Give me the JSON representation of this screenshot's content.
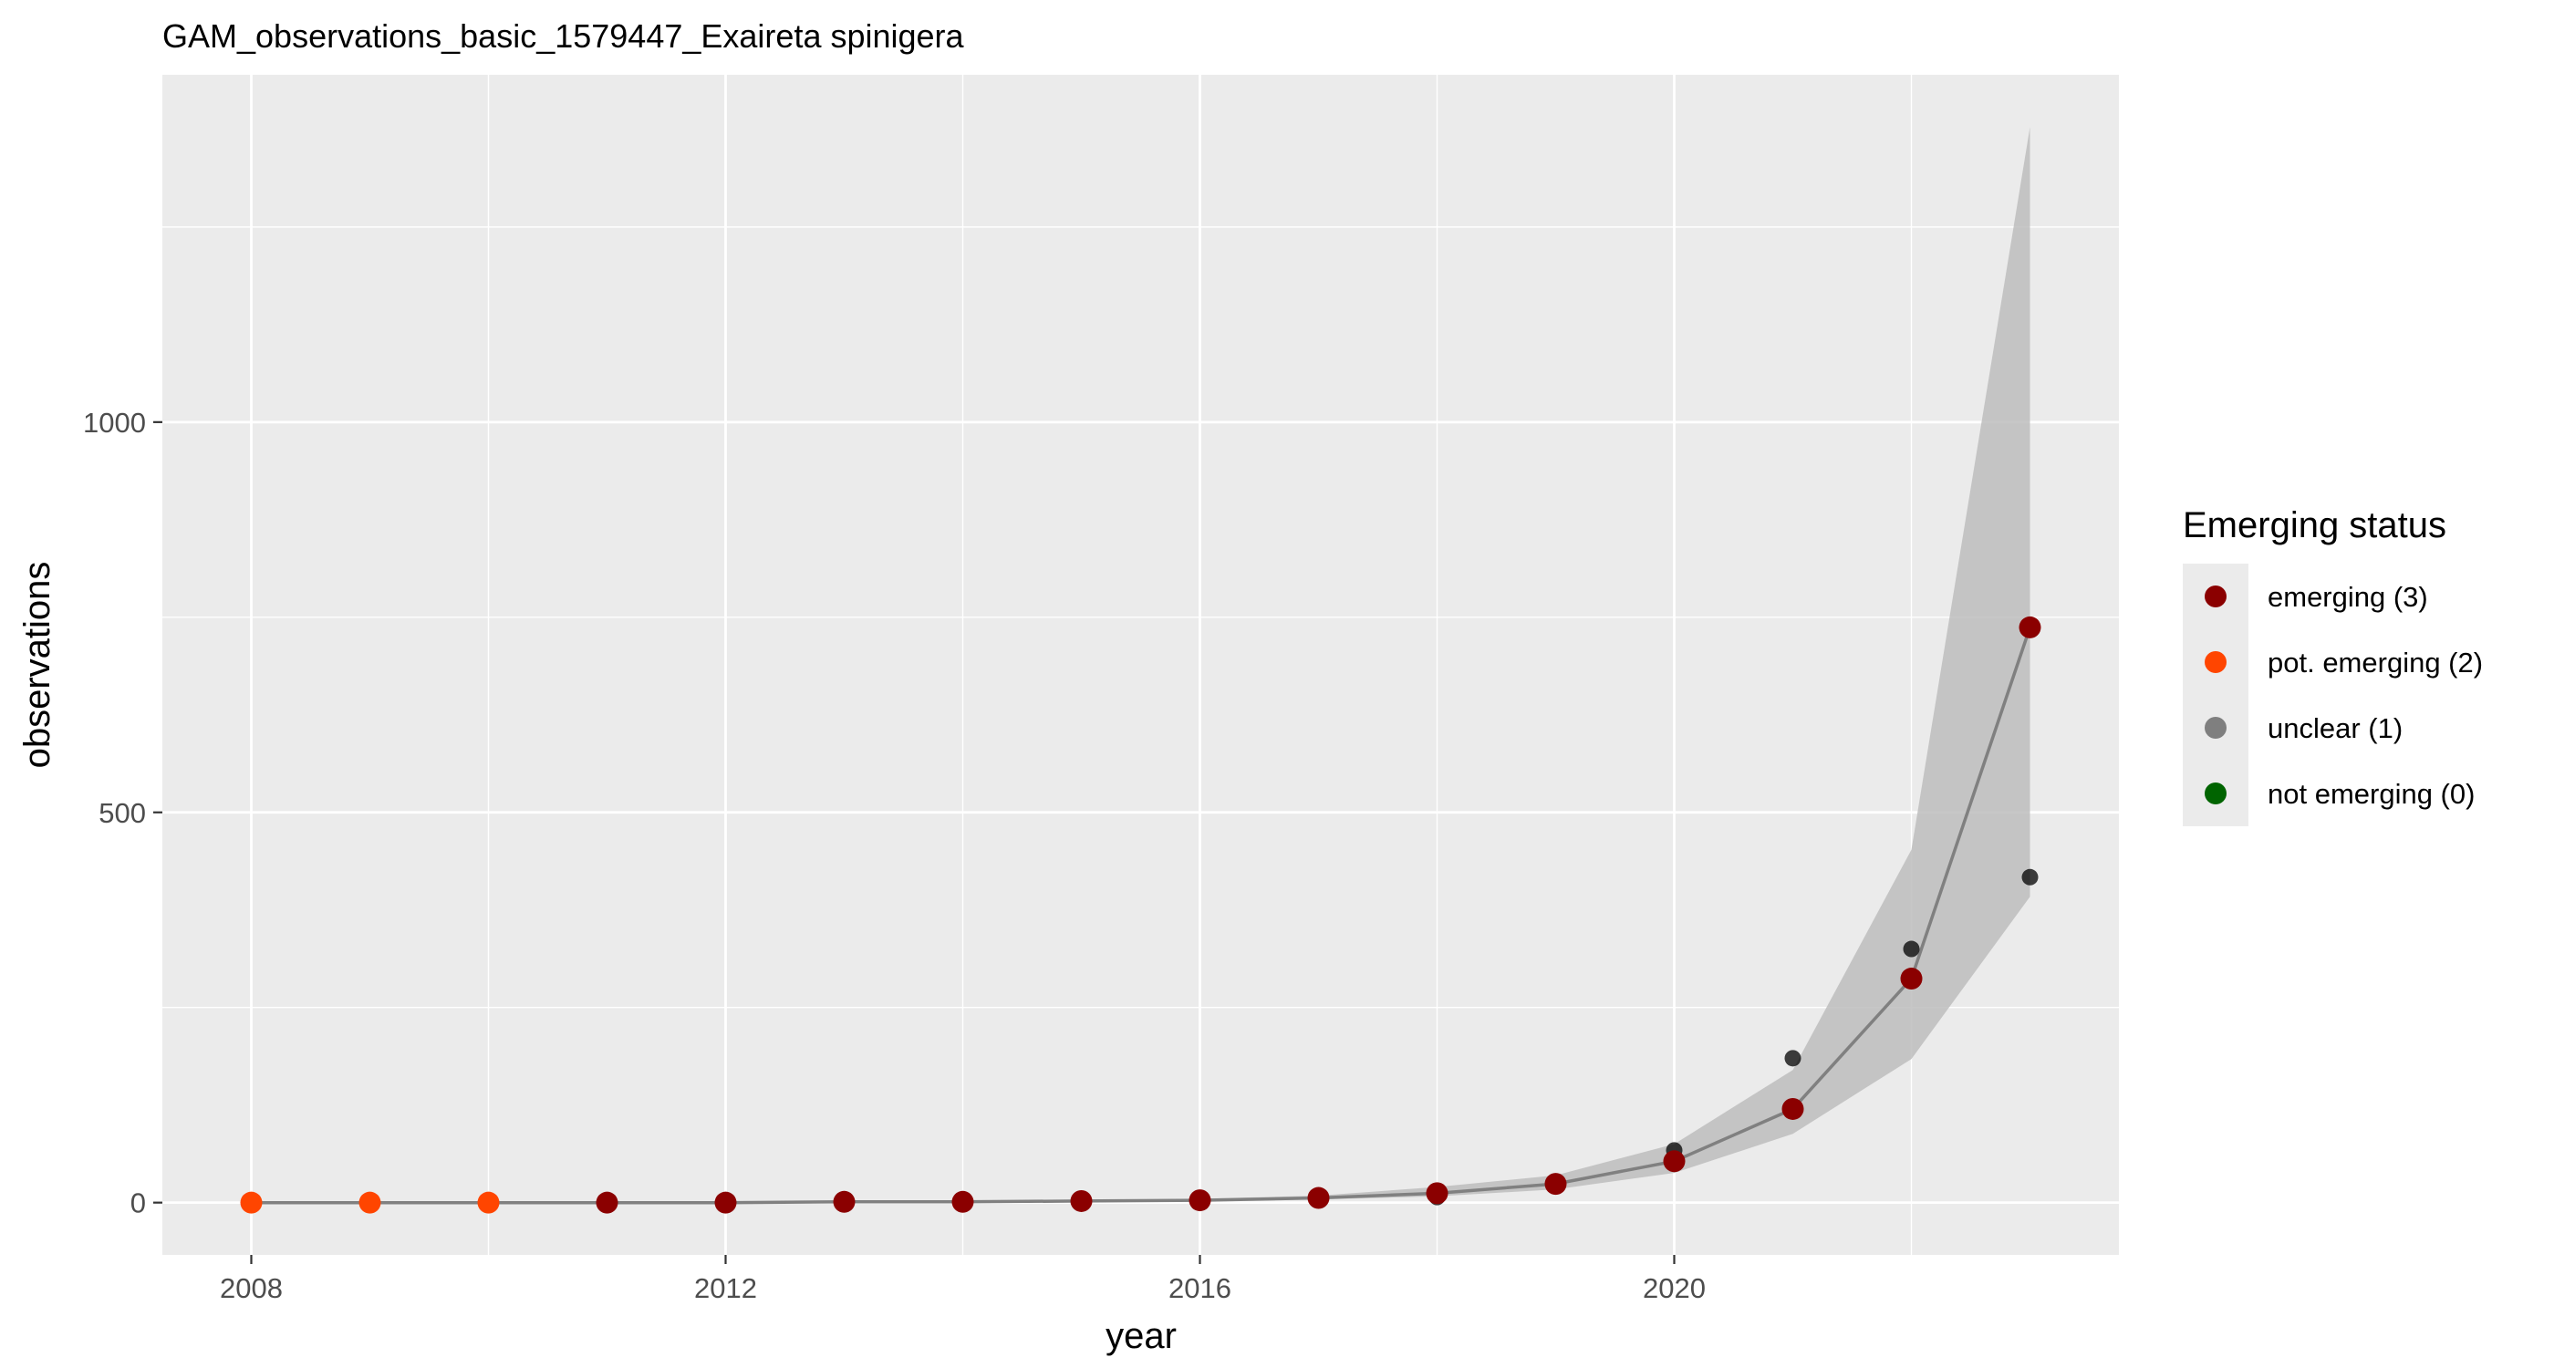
{
  "chart_data": {
    "type": "scatter",
    "title": "GAM_observations_basic_1579447_Exaireta spinigera",
    "xlabel": "year",
    "ylabel": "observations",
    "xlim": [
      2007.25,
      2023.75
    ],
    "ylim": [
      -67,
      1445
    ],
    "x_ticks": [
      2008,
      2012,
      2016,
      2020
    ],
    "y_ticks": [
      0,
      500,
      1000
    ],
    "x_minor_ticks": [
      2010,
      2014,
      2018,
      2022
    ],
    "y_minor_ticks": [
      250,
      750,
      1250
    ],
    "grid": true,
    "legend": {
      "title": "Emerging status",
      "position": "right",
      "entries": [
        {
          "label": "emerging (3)",
          "color": "#8b0000"
        },
        {
          "label": "pot. emerging (2)",
          "color": "#ff4500"
        },
        {
          "label": "unclear (1)",
          "color": "#7f7f7f"
        },
        {
          "label": "not emerging (0)",
          "color": "#006400"
        }
      ]
    },
    "colors": {
      "panel_background": "#ebebeb",
      "grid": "#ffffff",
      "ribbon": "#bdbdbd",
      "fit_line": "#808080",
      "observed_point": "#000000"
    },
    "observed": {
      "x": [
        2008,
        2009,
        2010,
        2011,
        2012,
        2013,
        2014,
        2015,
        2016,
        2017,
        2018,
        2019,
        2020,
        2021,
        2022,
        2023
      ],
      "y": [
        0,
        0,
        0,
        0,
        1,
        1,
        1,
        2,
        3,
        6,
        7,
        24,
        67,
        185,
        325,
        417
      ]
    },
    "fit": {
      "x": [
        2008,
        2009,
        2010,
        2011,
        2012,
        2013,
        2014,
        2015,
        2016,
        2017,
        2018,
        2019,
        2020,
        2021,
        2022,
        2023
      ],
      "y": [
        0,
        0,
        0,
        0,
        0,
        1,
        1,
        2,
        3,
        6,
        12,
        24,
        53,
        120,
        287,
        737
      ],
      "status": [
        "pot. emerging (2)",
        "pot. emerging (2)",
        "pot. emerging (2)",
        "emerging (3)",
        "emerging (3)",
        "emerging (3)",
        "emerging (3)",
        "emerging (3)",
        "emerging (3)",
        "emerging (3)",
        "emerging (3)",
        "emerging (3)",
        "emerging (3)",
        "emerging (3)",
        "emerging (3)",
        "emerging (3)"
      ],
      "lower": [
        0,
        0,
        0,
        0,
        0,
        0,
        1,
        1,
        2,
        4,
        8,
        17,
        38,
        88,
        184,
        392
      ],
      "upper": [
        0,
        0,
        0,
        0,
        1,
        2,
        2,
        3,
        5,
        9,
        20,
        35,
        75,
        170,
        452,
        1378
      ]
    }
  }
}
